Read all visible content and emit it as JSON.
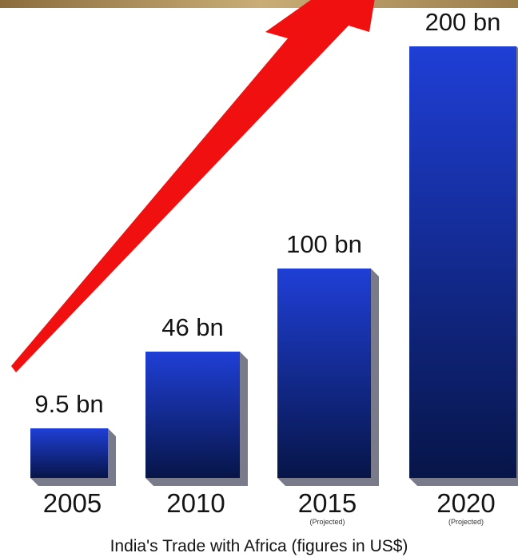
{
  "chart_data": {
    "type": "bar",
    "categories": [
      "2005",
      "2010",
      "2015",
      "2020"
    ],
    "category_notes": [
      "",
      "",
      "(Projected)",
      "(Projected)"
    ],
    "values": [
      9.5,
      46,
      100,
      200
    ],
    "data_labels": [
      "9.5 bn",
      "46 bn",
      "100 bn",
      "200 bn"
    ],
    "caption": "India's Trade with Africa (figures in US$)",
    "ylim": [
      0,
      200
    ],
    "bar_color_top": "#1f3fd6",
    "bar_color_bottom": "#071548",
    "arrow_color": "#f01010",
    "banner_color": "#b79a62"
  }
}
